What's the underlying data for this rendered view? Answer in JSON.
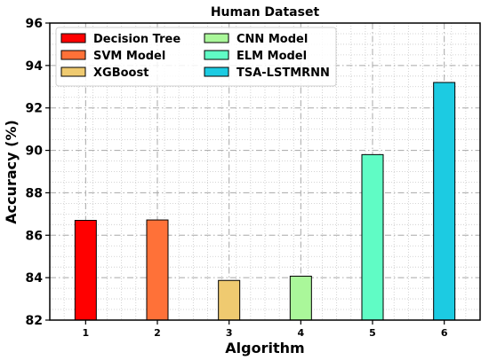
{
  "chart_data": {
    "type": "bar",
    "title": "Human Dataset",
    "xlabel": "Algorithm",
    "ylabel": "Accuracy (%)",
    "categories": [
      "1",
      "2",
      "3",
      "4",
      "5",
      "6"
    ],
    "values": [
      86.7,
      86.72,
      83.87,
      84.07,
      89.8,
      93.2
    ],
    "series_names": [
      "Decision Tree",
      "SVM Model",
      "XGBoost",
      "CNN Model",
      "ELM Model",
      "TSA-LSTMRNN"
    ],
    "colors": [
      "#ff0000",
      "#ff7138",
      "#efca70",
      "#aaf79a",
      "#60fcc5",
      "#1ccbe2"
    ],
    "ylim": [
      82,
      96
    ],
    "yticks": [
      "82",
      "84",
      "86",
      "88",
      "90",
      "92",
      "94",
      "96"
    ],
    "grid": true,
    "legend_position": "top-left"
  }
}
